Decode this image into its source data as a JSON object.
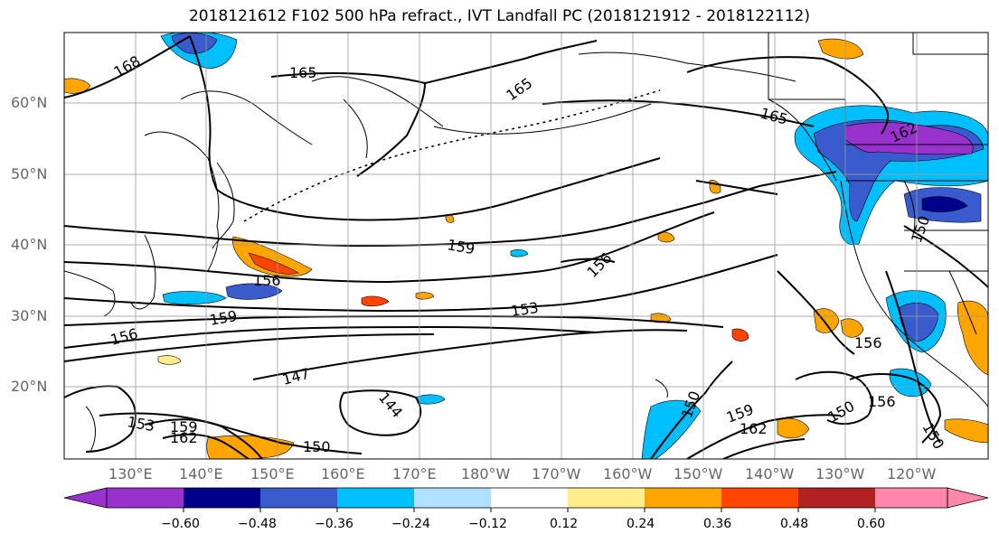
{
  "title": "2018121612 F102 500 hPa refract., IVT Landfall PC (2018121912 - 2018122112)",
  "lat_labels": [
    "60°N",
    "50°N",
    "40°N",
    "30°N",
    "20°N"
  ],
  "lon_labels": [
    "130°E",
    "140°E",
    "150°E",
    "160°E",
    "170°E",
    "180°W",
    "170°W",
    "160°W",
    "150°W",
    "140°W",
    "130°W",
    "120°W"
  ],
  "contour_labels": [
    "168",
    "165",
    "165",
    "165",
    "162",
    "159",
    "156",
    "156",
    "159",
    "156",
    "153",
    "147",
    "144",
    "150",
    "159",
    "162",
    "150",
    "156",
    "153",
    "159",
    "162",
    "150",
    "150",
    "156",
    "150"
  ],
  "colorbar": {
    "ticks": [
      "−0.60",
      "−0.48",
      "−0.36",
      "−0.24",
      "−0.12",
      "0.12",
      "0.24",
      "0.36",
      "0.48",
      "0.60"
    ],
    "colors": [
      "#9932cc",
      "#00008b",
      "#3a5bcd",
      "#00bfff",
      "#b0e0ff",
      "#ffffff",
      "#ffec8b",
      "#ffa500",
      "#ff4500",
      "#b22222",
      "#ff88aa"
    ]
  }
}
